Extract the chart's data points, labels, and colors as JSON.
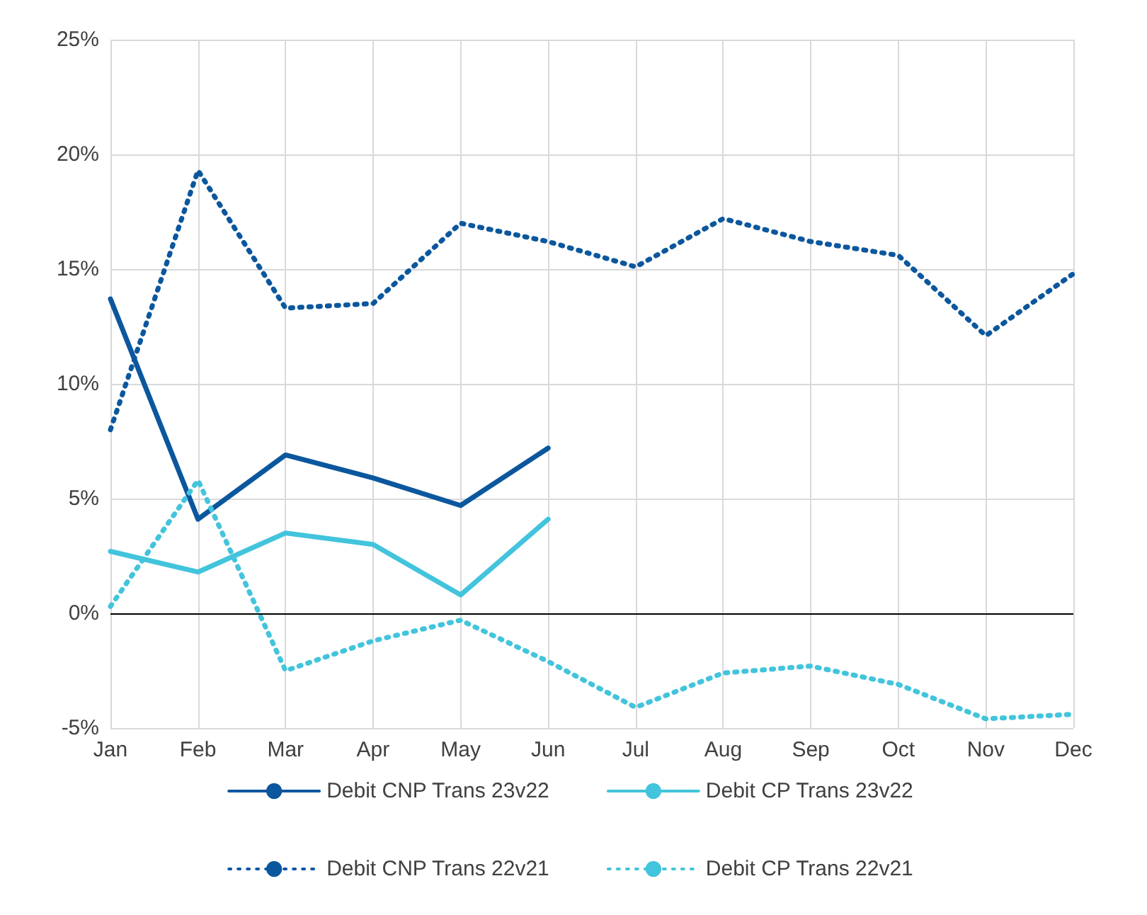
{
  "chart_data": {
    "type": "line",
    "categories": [
      "Jan",
      "Feb",
      "Mar",
      "Apr",
      "May",
      "Jun",
      "Jul",
      "Aug",
      "Sep",
      "Oct",
      "Nov",
      "Dec"
    ],
    "series": [
      {
        "name": "Debit CNP Trans 23v22",
        "color": "#0b579e",
        "line_style": "solid",
        "values": [
          13.7,
          4.1,
          6.9,
          5.9,
          4.7,
          7.2,
          null,
          null,
          null,
          null,
          null,
          null
        ]
      },
      {
        "name": "Debit CP Trans 23v22",
        "color": "#42c4dc",
        "line_style": "solid",
        "values": [
          2.7,
          1.8,
          3.5,
          3.0,
          0.8,
          4.1,
          null,
          null,
          null,
          null,
          null,
          null
        ]
      },
      {
        "name": "Debit CNP Trans 22v21",
        "color": "#0b579e",
        "line_style": "dotted",
        "values": [
          8.0,
          19.3,
          13.3,
          13.5,
          17.0,
          16.2,
          15.1,
          17.2,
          16.2,
          15.6,
          12.1,
          14.8
        ]
      },
      {
        "name": "Debit CP Trans 22v21",
        "color": "#42c4dc",
        "line_style": "dotted",
        "values": [
          0.3,
          5.8,
          -2.5,
          -1.2,
          -0.3,
          -2.1,
          -4.1,
          -2.6,
          -2.3,
          -3.1,
          -4.6,
          -4.4
        ]
      }
    ],
    "ylim": [
      -5,
      25
    ],
    "yticks": [
      {
        "value": -5,
        "label": "-5%"
      },
      {
        "value": 0,
        "label": "0%"
      },
      {
        "value": 5,
        "label": "5%"
      },
      {
        "value": 10,
        "label": "10%"
      },
      {
        "value": 15,
        "label": "15%"
      },
      {
        "value": 20,
        "label": "20%"
      },
      {
        "value": 25,
        "label": "25%"
      }
    ],
    "ref_lines": [
      {
        "axis": "y",
        "value": 0,
        "color": "#000000"
      }
    ],
    "grid": true,
    "legend": "bottom",
    "marker": "none"
  }
}
